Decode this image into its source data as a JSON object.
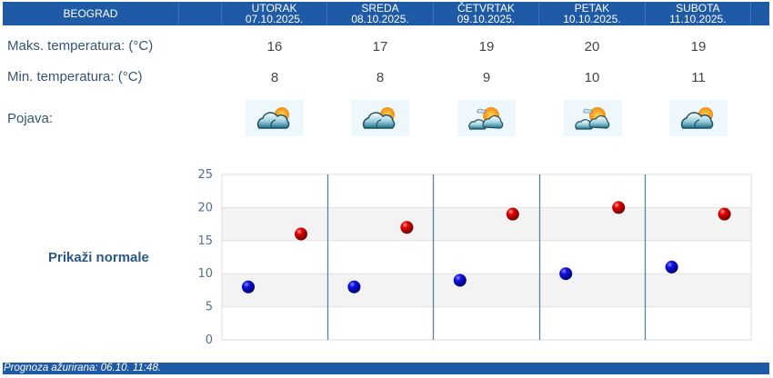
{
  "header": {
    "city": "BEOGRAD",
    "days": [
      {
        "name": "UTORAK",
        "date": "07.10.2025."
      },
      {
        "name": "SREDA",
        "date": "08.10.2025."
      },
      {
        "name": "ČETVRTAK",
        "date": "09.10.2025."
      },
      {
        "name": "PETAK",
        "date": "10.10.2025."
      },
      {
        "name": "SUBOTA",
        "date": "11.10.2025."
      }
    ]
  },
  "rows": {
    "max_label": "Maks. temperatura: (°C)",
    "min_label": "Min. temperatura: (°C)",
    "phen_label": "Pojava:",
    "max": [
      "16",
      "17",
      "19",
      "20",
      "19"
    ],
    "min": [
      "8",
      "8",
      "9",
      "10",
      "11"
    ],
    "icons": [
      "partly-cloudy-icon",
      "partly-cloudy-icon",
      "sun-behind-clouds-icon",
      "sun-behind-clouds-icon",
      "partly-cloudy-icon"
    ]
  },
  "normals_link": "Prikaži normale",
  "footer": {
    "updated": "Prognoza ažurirana:  06.10. 11:48."
  },
  "colors": {
    "header_bg": "#1f5aa6",
    "min_marker": "#0000c8",
    "max_marker": "#d00000",
    "label_text": "#355577"
  },
  "chart_data": {
    "type": "scatter",
    "categories": [
      "07.10.2025.",
      "08.10.2025.",
      "09.10.2025.",
      "10.10.2025.",
      "11.10.2025."
    ],
    "series": [
      {
        "name": "Min. temperatura",
        "color": "#0000c8",
        "values": [
          8,
          8,
          9,
          10,
          11
        ]
      },
      {
        "name": "Maks. temperatura",
        "color": "#d00000",
        "values": [
          16,
          17,
          19,
          20,
          19
        ]
      }
    ],
    "yticks": [
      "0",
      "5",
      "10",
      "15",
      "20",
      "25"
    ],
    "ylim": [
      0,
      25
    ],
    "grid": true,
    "alternating_bands": true,
    "title": "",
    "xlabel": "",
    "ylabel": ""
  }
}
